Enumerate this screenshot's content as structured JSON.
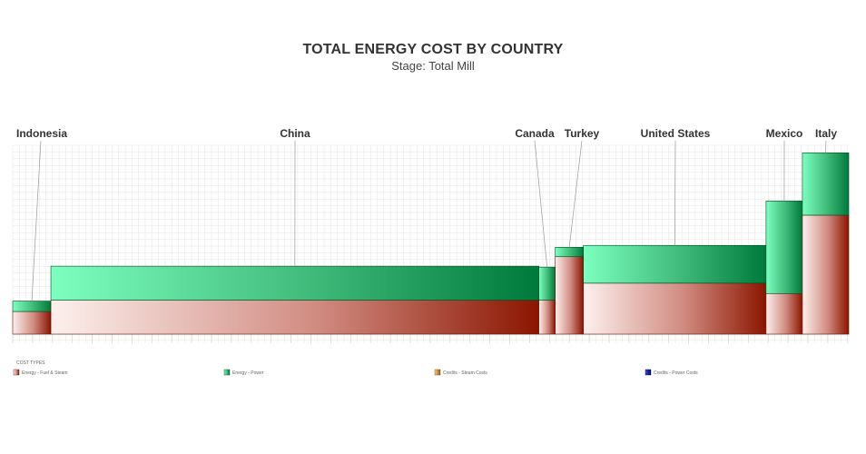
{
  "chart_data": {
    "type": "bar",
    "title": "TOTAL ENERGY COST BY COUNTRY",
    "subtitle": "Stage: Total Mill",
    "xlabel": "",
    "ylabel": "",
    "grid": true,
    "x_unit": "relative capacity share",
    "y_range": [
      0,
      200
    ],
    "categories": [
      "Indonesia",
      "China",
      "Canada",
      "Turkey",
      "United States",
      "Mexico",
      "Italy"
    ],
    "widths": [
      42,
      537,
      18,
      31,
      201,
      40,
      51
    ],
    "series": [
      {
        "name": "Energy - Fuel & Steam",
        "color": "#8b1500",
        "values": [
          24,
          36,
          36,
          82,
          54,
          43,
          126
        ]
      },
      {
        "name": "Energy - Power",
        "color": "#007a3a",
        "values": [
          11,
          36,
          35,
          10,
          40,
          98,
          66
        ]
      },
      {
        "name": "Credits - Steam Costs",
        "color": "#c87a10",
        "values": [
          0,
          0,
          0,
          0,
          0,
          0,
          0
        ]
      },
      {
        "name": "Credits - Power Costs",
        "color": "#0a1a80",
        "values": [
          0,
          0,
          0,
          0,
          0,
          0,
          0
        ]
      }
    ],
    "legend": {
      "title": "COST TYPES",
      "position": "bottom"
    }
  }
}
